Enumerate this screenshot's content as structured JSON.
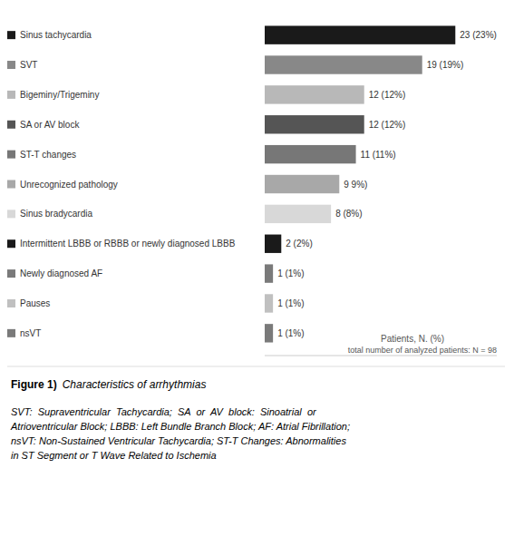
{
  "chart_data": {
    "type": "bar",
    "orientation": "horizontal",
    "title": "Figure 1)",
    "subtitle": "Characteristics of arrhythmias",
    "categories": [
      "Sinus tachycardia",
      "SVT",
      "Bigeminy/Trigeminy",
      "SA or AV block",
      "ST-T changes",
      "Unrecognized pathology",
      "Sinus bradycardia",
      "Intermittent LBBB or RBBB or newly diagnosed LBBB",
      "Newly diagnosed AF",
      "Pauses",
      "nsVT"
    ],
    "values": [
      23,
      19,
      12,
      12,
      11,
      9,
      8,
      2,
      1,
      1,
      1
    ],
    "value_labels": [
      "23 (23%)",
      "19 (19%)",
      "12 (12%)",
      "12 (12%)",
      "11 (11%)",
      "9 9%)",
      "8 (8%)",
      "2 (2%)",
      "1 (1%)",
      "1 (1%)",
      "1 (1%)"
    ],
    "colors": [
      "#1a1a1a",
      "#888888",
      "#b8b8b8",
      "#555555",
      "#777777",
      "#a8a8a8",
      "#d8d8d8",
      "#1a1a1a",
      "#7a7a7a",
      "#c0c0c0",
      "#7a7a7a"
    ],
    "data_labels": true,
    "grid": false,
    "tick_labels": "y",
    "xlim": [
      0,
      28
    ],
    "annotations": [
      "Patients, N. (%)",
      "total number of analyzed patients: N = 98",
      "SVT:  Supraventricular  Tachycardia;  SA  or  AV  block:  Sinoatrial  or\nAtrioventricular Block; LBBB: Left Bundle Branch Block; AF: Atrial Fibrillation;\nnsVT: Non-Sustained Ventricular Tachycardia; ST-T Changes: Abnormalities\nin ST Segment or T Wave Related to Ischemia"
    ]
  }
}
